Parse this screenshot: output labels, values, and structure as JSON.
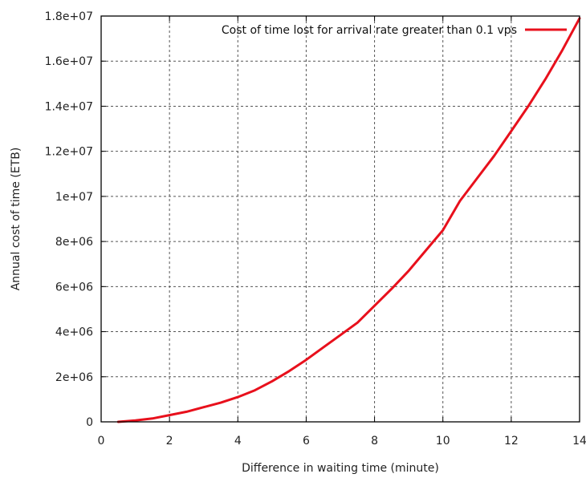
{
  "chart_data": {
    "type": "line",
    "xlabel": "Difference in waiting time (minute)",
    "ylabel": "Annual cost of time (ETB)",
    "xlim": [
      0,
      14
    ],
    "ylim": [
      0,
      18000000
    ],
    "x_ticks": [
      "0",
      "2",
      "4",
      "6",
      "8",
      "10",
      "12",
      "14"
    ],
    "y_ticks": [
      "0",
      "2e+06",
      "4e+06",
      "6e+06",
      "8e+06",
      "1e+07",
      "1.2e+07",
      "1.4e+07",
      "1.6e+07",
      "1.8e+07"
    ],
    "grid": true,
    "legend_position": "top-right",
    "series": [
      {
        "name": "Cost of time lost for arrival rate greater than 0.1 vps",
        "color": "#e8101c",
        "x": [
          0.5,
          1,
          1.5,
          2,
          2.5,
          3,
          3.5,
          4,
          4.5,
          5,
          5.5,
          6,
          6.5,
          7,
          7.5,
          8,
          8.5,
          9,
          9.5,
          10,
          10.5,
          11,
          11.5,
          12,
          12.5,
          13,
          13.5,
          14
        ],
        "y": [
          0,
          60000,
          150000,
          300000,
          450000,
          650000,
          850000,
          1100000,
          1400000,
          1800000,
          2250000,
          2750000,
          3300000,
          3850000,
          4400000,
          5150000,
          5900000,
          6700000,
          7600000,
          8500000,
          9800000,
          10800000,
          11800000,
          12900000,
          14000000,
          15200000,
          16500000,
          17900000
        ]
      }
    ]
  }
}
